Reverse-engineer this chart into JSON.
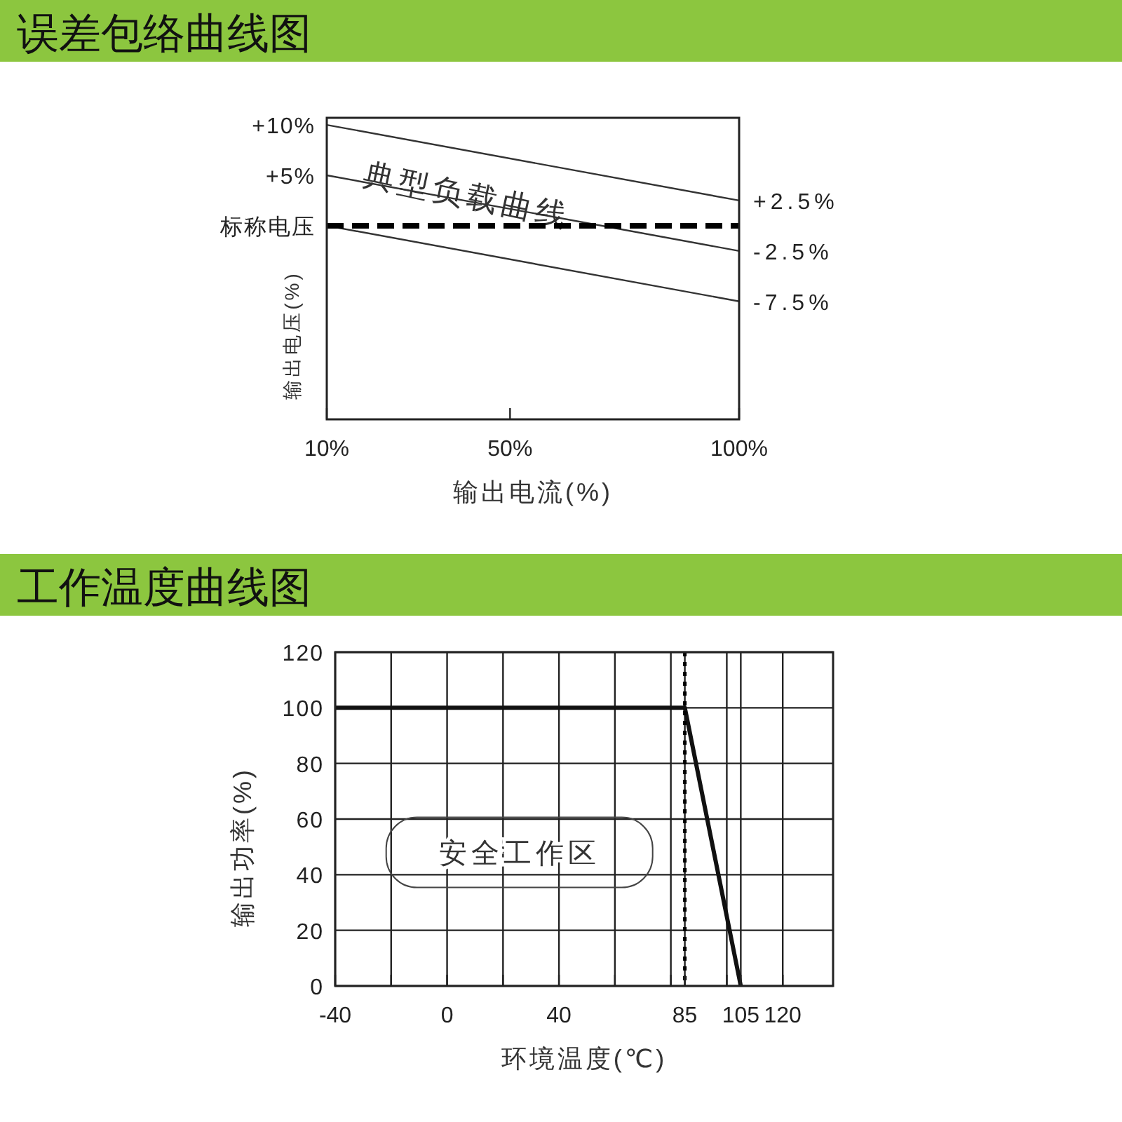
{
  "chart_data": [
    {
      "type": "line",
      "title": "误差包络曲线图",
      "xlabel": "输出电流(%)",
      "ylabel": "输出电压(%)",
      "xlim": [
        10,
        100
      ],
      "xticks": [
        {
          "value": 10,
          "label": "10%"
        },
        {
          "value": 50,
          "label": "50%"
        },
        {
          "value": 100,
          "label": "100%"
        }
      ],
      "ylim": [
        -19.2,
        10.7
      ],
      "yticks": [
        {
          "value": 10,
          "label": "+10%"
        },
        {
          "value": 5,
          "label": "+5%"
        },
        {
          "value": 0,
          "label": "标称电压"
        }
      ],
      "y2lim": [
        -19.2,
        10.7
      ],
      "y2ticks": [
        {
          "value": 2.5,
          "label": "+2.5%"
        },
        {
          "value": -2.5,
          "label": "-2.5%"
        },
        {
          "value": -7.5,
          "label": "-7.5%"
        }
      ],
      "series": [
        {
          "color": "#333333",
          "x": [
            10,
            100
          ],
          "values": [
            10,
            2.5
          ]
        },
        {
          "color": "#333333",
          "x": [
            10,
            100
          ],
          "values": [
            5,
            -2.5
          ]
        },
        {
          "color": "#333333",
          "x": [
            10,
            100
          ],
          "values": [
            0,
            -7.5
          ]
        }
      ],
      "ref_lines": [
        {
          "axis": "y",
          "value": 0,
          "color": "#000000",
          "line_style": "dashed"
        }
      ],
      "annotations": [
        "典型负载曲线"
      ],
      "grid": false
    },
    {
      "type": "line",
      "title": "工作温度曲线图",
      "xlabel": "环境温度(℃)",
      "ylabel": "输出功率(%)",
      "xlim": [
        -40,
        138
      ],
      "xticks": [
        -40,
        {
          "value": -20,
          "label": null
        },
        0,
        {
          "value": 20,
          "label": null
        },
        40,
        {
          "value": 60,
          "label": null
        },
        {
          "value": 80,
          "label": null
        },
        85,
        {
          "value": 100,
          "label": null
        },
        105,
        120
      ],
      "ylim": [
        0,
        120
      ],
      "yticks": [
        0,
        20,
        40,
        60,
        80,
        100,
        120
      ],
      "series": [
        {
          "color": "#111111",
          "x": [
            -40,
            85,
            105
          ],
          "values": [
            100,
            100,
            0
          ]
        }
      ],
      "ref_lines": [
        {
          "axis": "x",
          "value": 85,
          "color": "#000000",
          "line_style": "dotted"
        }
      ],
      "annotations": [
        "安全工作区"
      ],
      "grid": true
    }
  ]
}
